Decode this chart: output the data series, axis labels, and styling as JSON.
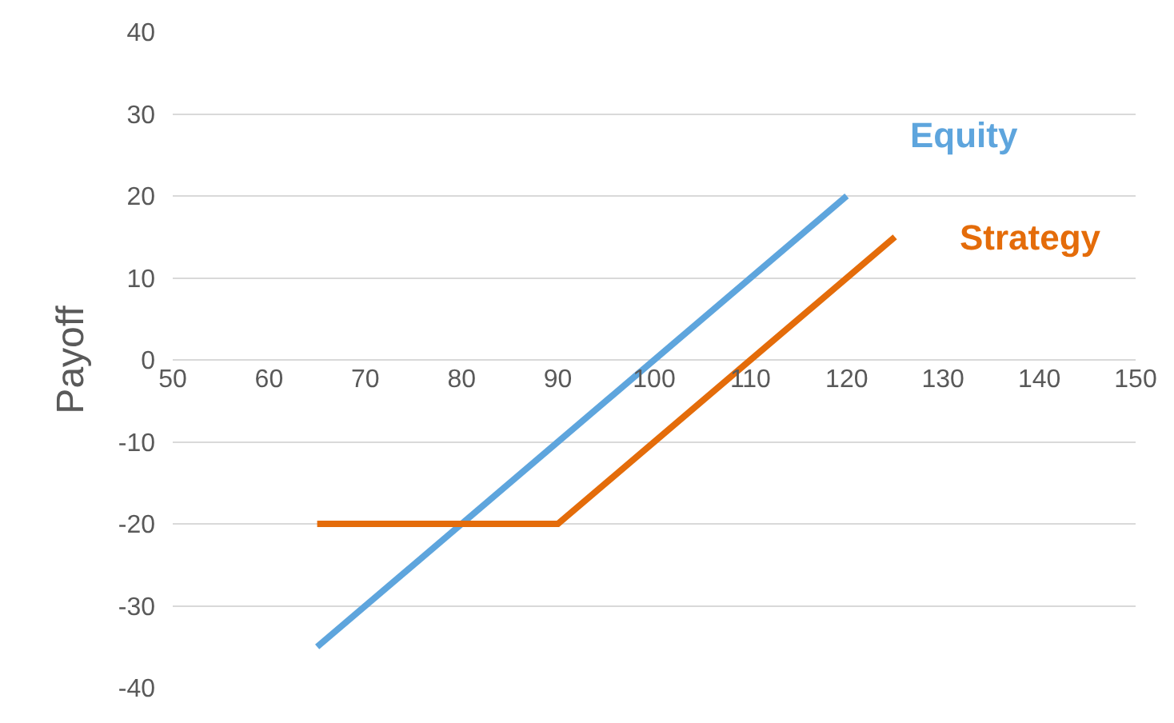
{
  "chart_data": {
    "type": "line",
    "ylabel": "Payoff",
    "series": [
      {
        "name": "Equity",
        "color": "#5ea5dd",
        "x": [
          65,
          120
        ],
        "values": [
          -35,
          20
        ]
      },
      {
        "name": "Strategy",
        "color": "#e46c0a",
        "x": [
          65,
          90,
          125
        ],
        "values": [
          -20,
          -20,
          15
        ]
      }
    ],
    "xlim": [
      50,
      150
    ],
    "xticks": [
      50,
      60,
      70,
      80,
      90,
      100,
      110,
      120,
      130,
      140,
      150
    ],
    "ylim": [
      -40,
      40
    ],
    "yticks": [
      -40,
      -30,
      -20,
      -10,
      0,
      10,
      20,
      30,
      40
    ],
    "grid": "y",
    "legend": false,
    "marker": "none",
    "line_style": "solid"
  }
}
